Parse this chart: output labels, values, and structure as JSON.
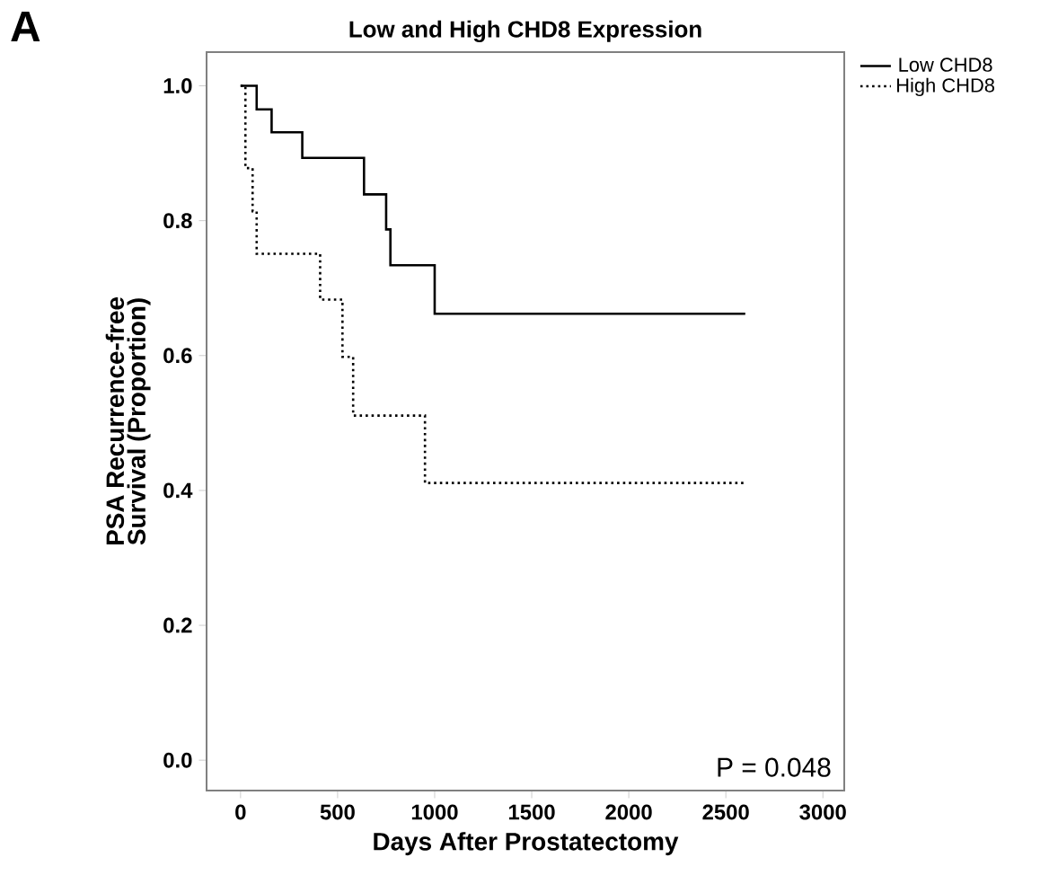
{
  "chart_data": {
    "type": "step",
    "title": "Low and High CHD8 Expression",
    "xlabel": "Days After Prostatectomy",
    "ylabel": "PSA Recurrence-free Survival (Proportion)",
    "series": [
      {
        "name": "Low CHD8",
        "color": "#000000",
        "line_style": "solid",
        "x": [
          0,
          83,
          160,
          318,
          636,
          750,
          772,
          1000,
          2600
        ],
        "values": [
          1.0,
          0.965,
          0.931,
          0.893,
          0.839,
          0.787,
          0.734,
          0.662,
          0.662
        ]
      },
      {
        "name": "High CHD8",
        "color": "#000000",
        "line_style": "dotted",
        "x": [
          0,
          25,
          62,
          83,
          410,
          525,
          580,
          950,
          2600
        ],
        "values": [
          1.0,
          0.878,
          0.814,
          0.751,
          0.683,
          0.598,
          0.511,
          0.411,
          0.411
        ]
      }
    ],
    "xlim": [
      -175,
      3110
    ],
    "ylim": [
      -0.045,
      1.05
    ],
    "xticks": [
      0,
      500,
      1000,
      1500,
      2000,
      2500,
      3000
    ],
    "yticks": [
      {
        "value": 0,
        "label": "0.0"
      },
      {
        "value": 0.2,
        "label": "0.2"
      },
      {
        "value": 0.4,
        "label": "0.4"
      },
      {
        "value": 0.6,
        "label": "0.6"
      },
      {
        "value": 0.8,
        "label": "0.8"
      },
      {
        "value": 1,
        "label": "1.0"
      }
    ],
    "grid": false,
    "legend": "top right",
    "marker": "none",
    "annotations": [
      "A",
      "P = 0.048"
    ]
  }
}
